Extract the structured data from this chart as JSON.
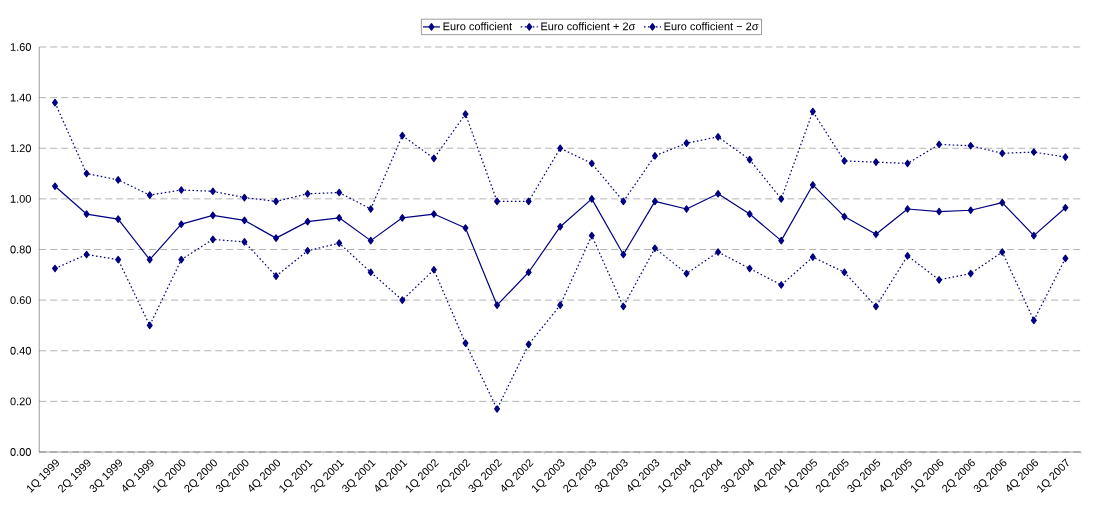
{
  "chart_data": {
    "type": "line",
    "categories": [
      "1Q 1999",
      "2Q 1999",
      "3Q 1999",
      "4Q 1999",
      "1Q 2000",
      "2Q 2000",
      "3Q 2000",
      "4Q 2000",
      "1Q 2001",
      "2Q 2001",
      "3Q 2001",
      "4Q 2001",
      "1Q 2002",
      "2Q 2002",
      "3Q 2002",
      "4Q 2002",
      "1Q 2003",
      "2Q 2003",
      "3Q 2003",
      "4Q 2003",
      "1Q 2004",
      "2Q 2004",
      "3Q 2004",
      "4Q 2004",
      "1Q 2005",
      "2Q 2005",
      "3Q 2005",
      "4Q 2005",
      "1Q 2006",
      "2Q 2006",
      "3Q 2006",
      "4Q 2006",
      "1Q 2007"
    ],
    "series": [
      {
        "name": "Euro cofficient",
        "color": "#000080",
        "line_style": "solid",
        "values": [
          1.05,
          0.94,
          0.92,
          0.76,
          0.9,
          0.935,
          0.915,
          0.845,
          0.91,
          0.925,
          0.835,
          0.925,
          0.94,
          0.885,
          0.58,
          0.71,
          0.89,
          1.0,
          0.78,
          0.99,
          0.96,
          1.02,
          0.94,
          0.835,
          1.055,
          0.93,
          0.86,
          0.96,
          0.95,
          0.955,
          0.985,
          0.855,
          0.965
        ]
      },
      {
        "name": "Euro cofficient + 2σ",
        "color": "#000080",
        "line_style": "dotted",
        "values": [
          1.38,
          1.1,
          1.075,
          1.015,
          1.035,
          1.03,
          1.005,
          0.99,
          1.02,
          1.025,
          0.96,
          1.25,
          1.16,
          1.335,
          0.99,
          0.99,
          1.2,
          1.14,
          0.99,
          1.17,
          1.22,
          1.245,
          1.155,
          1.0,
          1.345,
          1.15,
          1.145,
          1.14,
          1.215,
          1.21,
          1.18,
          1.185,
          1.165
        ]
      },
      {
        "name": "Euro cofficient − 2σ",
        "color": "#000080",
        "line_style": "dotted",
        "values": [
          0.725,
          0.78,
          0.76,
          0.5,
          0.76,
          0.84,
          0.83,
          0.695,
          0.795,
          0.825,
          0.71,
          0.6,
          0.72,
          0.43,
          0.17,
          0.425,
          0.58,
          0.855,
          0.575,
          0.805,
          0.705,
          0.79,
          0.725,
          0.66,
          0.77,
          0.71,
          0.575,
          0.775,
          0.68,
          0.705,
          0.79,
          0.52,
          0.765
        ]
      }
    ],
    "ylim": [
      0,
      1.6
    ],
    "yticks": [
      {
        "value": 0,
        "label": "0.00"
      },
      {
        "value": 0.2,
        "label": "0.20"
      },
      {
        "value": 0.4,
        "label": "0.40"
      },
      {
        "value": 0.6,
        "label": "0.60"
      },
      {
        "value": 0.8,
        "label": "0.80"
      },
      {
        "value": 1.0,
        "label": "1.00"
      },
      {
        "value": 1.2,
        "label": "1.20"
      },
      {
        "value": 1.4,
        "label": "1.40"
      },
      {
        "value": 1.6,
        "label": "1.60"
      }
    ],
    "grid": "y",
    "legend": "top",
    "marker": "diamond"
  }
}
